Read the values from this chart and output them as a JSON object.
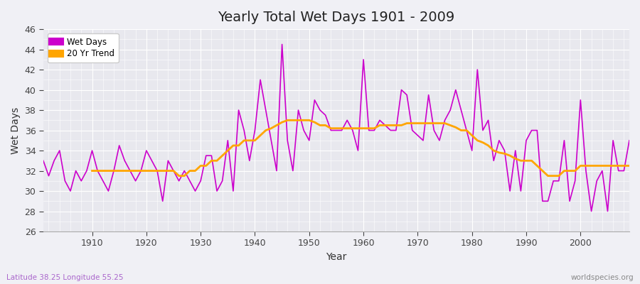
{
  "title": "Yearly Total Wet Days 1901 - 2009",
  "xlabel": "Year",
  "ylabel": "Wet Days",
  "subtitle": "Latitude 38.25 Longitude 55.25",
  "watermark": "worldspecies.org",
  "ylim": [
    26,
    46
  ],
  "yticks": [
    26,
    28,
    30,
    32,
    34,
    36,
    38,
    40,
    42,
    44,
    46
  ],
  "xticks": [
    1910,
    1920,
    1930,
    1940,
    1950,
    1960,
    1970,
    1980,
    1990,
    2000
  ],
  "xlim": [
    1901,
    2009
  ],
  "bg_color": "#f0f0f5",
  "plot_bg_color": "#e8e8ee",
  "wet_days_color": "#cc00cc",
  "trend_color": "#ffa500",
  "wet_days_linewidth": 1.2,
  "trend_linewidth": 2.0,
  "years": [
    1901,
    1902,
    1903,
    1904,
    1905,
    1906,
    1907,
    1908,
    1909,
    1910,
    1911,
    1912,
    1913,
    1914,
    1915,
    1916,
    1917,
    1918,
    1919,
    1920,
    1921,
    1922,
    1923,
    1924,
    1925,
    1926,
    1927,
    1928,
    1929,
    1930,
    1931,
    1932,
    1933,
    1934,
    1935,
    1936,
    1937,
    1938,
    1939,
    1940,
    1941,
    1942,
    1943,
    1944,
    1945,
    1946,
    1947,
    1948,
    1949,
    1950,
    1951,
    1952,
    1953,
    1954,
    1955,
    1956,
    1957,
    1958,
    1959,
    1960,
    1961,
    1962,
    1963,
    1964,
    1965,
    1966,
    1967,
    1968,
    1969,
    1970,
    1971,
    1972,
    1973,
    1974,
    1975,
    1976,
    1977,
    1978,
    1979,
    1980,
    1981,
    1982,
    1983,
    1984,
    1985,
    1986,
    1987,
    1988,
    1989,
    1990,
    1991,
    1992,
    1993,
    1994,
    1995,
    1996,
    1997,
    1998,
    1999,
    2000,
    2001,
    2002,
    2003,
    2004,
    2005,
    2006,
    2007,
    2008,
    2009
  ],
  "wet_days": [
    33,
    31.5,
    33,
    34,
    31,
    30,
    32,
    31,
    32,
    34,
    32,
    31,
    30,
    32,
    34.5,
    33,
    32,
    31,
    32,
    34,
    33,
    32,
    29,
    33,
    32,
    31,
    32,
    31,
    30,
    31,
    33.5,
    33.5,
    30,
    31,
    35,
    30,
    38,
    36,
    33,
    36,
    41,
    38,
    35,
    32,
    44.5,
    35,
    32,
    38,
    36,
    35,
    39,
    38,
    37.5,
    36,
    36,
    36,
    37,
    36,
    34,
    43,
    36,
    36,
    37,
    36.5,
    36,
    36,
    40,
    39.5,
    36,
    35.5,
    35,
    39.5,
    36,
    35,
    37,
    38,
    40,
    38,
    36,
    34,
    42,
    36,
    37,
    33,
    35,
    34,
    30,
    34,
    30,
    35,
    36,
    36,
    29,
    29,
    31,
    31,
    35,
    29,
    31,
    39,
    32,
    28,
    31,
    32,
    28,
    35,
    32,
    32,
    35
  ],
  "trend": [
    null,
    null,
    null,
    null,
    null,
    null,
    null,
    null,
    null,
    32,
    32,
    32,
    32,
    32,
    32,
    32,
    32,
    32,
    32,
    32,
    32,
    32,
    32,
    32,
    32,
    31.5,
    31.5,
    32,
    32,
    32.5,
    32.5,
    33,
    33,
    33.5,
    34,
    34.5,
    34.5,
    35,
    35,
    35,
    35.5,
    36,
    36.2,
    36.5,
    36.8,
    37,
    37,
    37,
    37,
    37,
    36.8,
    36.5,
    36.5,
    36.2,
    36.2,
    36.2,
    36.2,
    36.2,
    36.2,
    36.2,
    36.2,
    36.2,
    36.5,
    36.5,
    36.5,
    36.5,
    36.5,
    36.7,
    36.7,
    36.7,
    36.7,
    36.7,
    36.7,
    36.7,
    36.7,
    36.5,
    36.3,
    36,
    36,
    35.5,
    35,
    34.8,
    34.5,
    34,
    33.8,
    33.7,
    33.5,
    33.2,
    33,
    33,
    33,
    32.5,
    32,
    31.5,
    31.5,
    31.5,
    32,
    32,
    32,
    32.5,
    32.5,
    32.5,
    32.5,
    32.5,
    32.5,
    32.5,
    32.5,
    32.5,
    32.5
  ]
}
